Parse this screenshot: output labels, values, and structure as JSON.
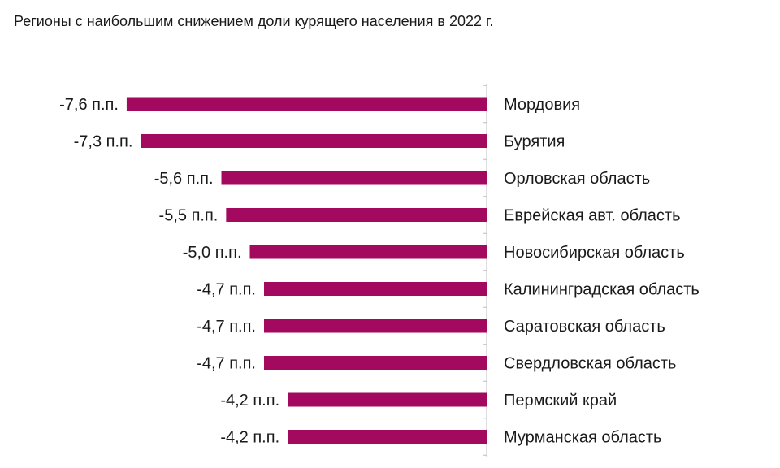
{
  "chart_data": {
    "type": "bar",
    "orientation": "horizontal",
    "title": "Регионы с наибольшим снижением доли курящего населения в 2022 г.",
    "categories": [
      "Мордовия",
      "Бурятия",
      "Орловская область",
      "Еврейская авт. область",
      "Новосибирская область",
      "Калининградская область",
      "Саратовская область",
      "Свердловская область",
      "Пермский край",
      "Мурманская область"
    ],
    "values": [
      -7.6,
      -7.3,
      -5.6,
      -5.5,
      -5.0,
      -4.7,
      -4.7,
      -4.7,
      -4.2,
      -4.2
    ],
    "value_labels": [
      "-7,6 п.п.",
      "-7,3 п.п.",
      "-5,6 п.п.",
      "-5,5 п.п.",
      "-5,0 п.п.",
      "-4,7 п.п.",
      "-4,7 п.п.",
      "-4,7 п.п.",
      "-4,2 п.п.",
      "-4,2 п.п."
    ],
    "xlabel": "",
    "ylabel": "",
    "grid": false,
    "legend": "none",
    "bar_color": "#a3095e"
  }
}
